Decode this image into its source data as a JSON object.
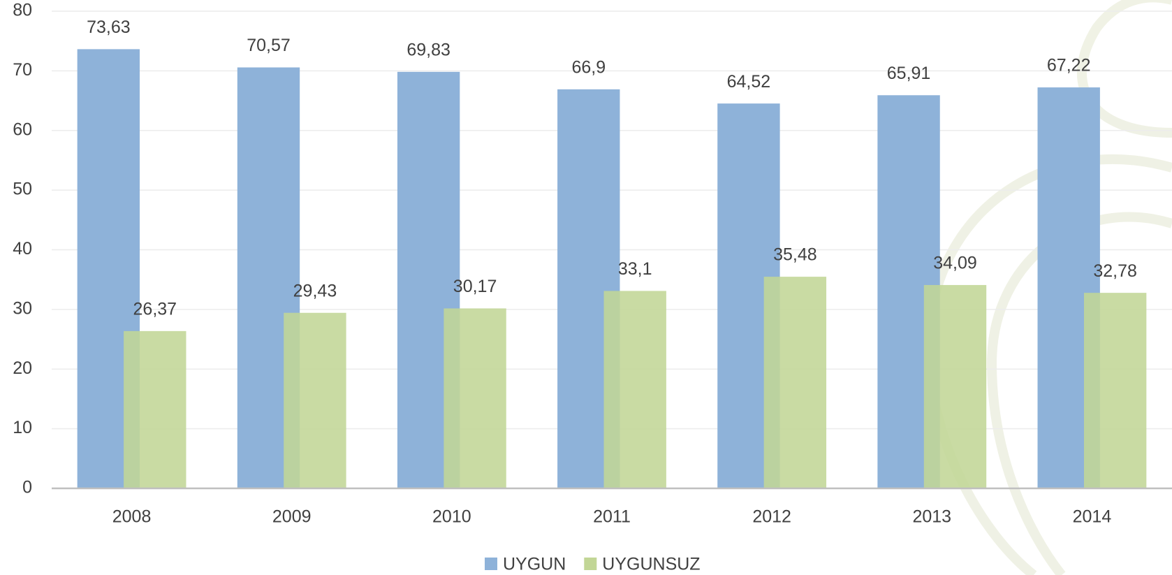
{
  "chart_data": {
    "type": "bar",
    "categories": [
      "2008",
      "2009",
      "2010",
      "2011",
      "2012",
      "2013",
      "2014"
    ],
    "series": [
      {
        "name": "UYGUN",
        "color": "#8eb2d9",
        "values": [
          73.63,
          70.57,
          69.83,
          66.9,
          64.52,
          65.91,
          67.22
        ],
        "value_labels": [
          "73,63",
          "70,57",
          "69,83",
          "66,9",
          "64,52",
          "65,91",
          "67,22"
        ]
      },
      {
        "name": "UYGUNSUZ",
        "color": "#c2d696",
        "values": [
          26.37,
          29.43,
          30.17,
          33.1,
          35.48,
          34.09,
          32.78
        ],
        "value_labels": [
          "26,37",
          "29,43",
          "30,17",
          "33,1",
          "35,48",
          "34,09",
          "32,78"
        ]
      }
    ],
    "ylim": [
      0,
      80
    ],
    "yticks": [
      0,
      10,
      20,
      30,
      40,
      50,
      60,
      70,
      80
    ],
    "grid": true,
    "legend": "bottom"
  }
}
